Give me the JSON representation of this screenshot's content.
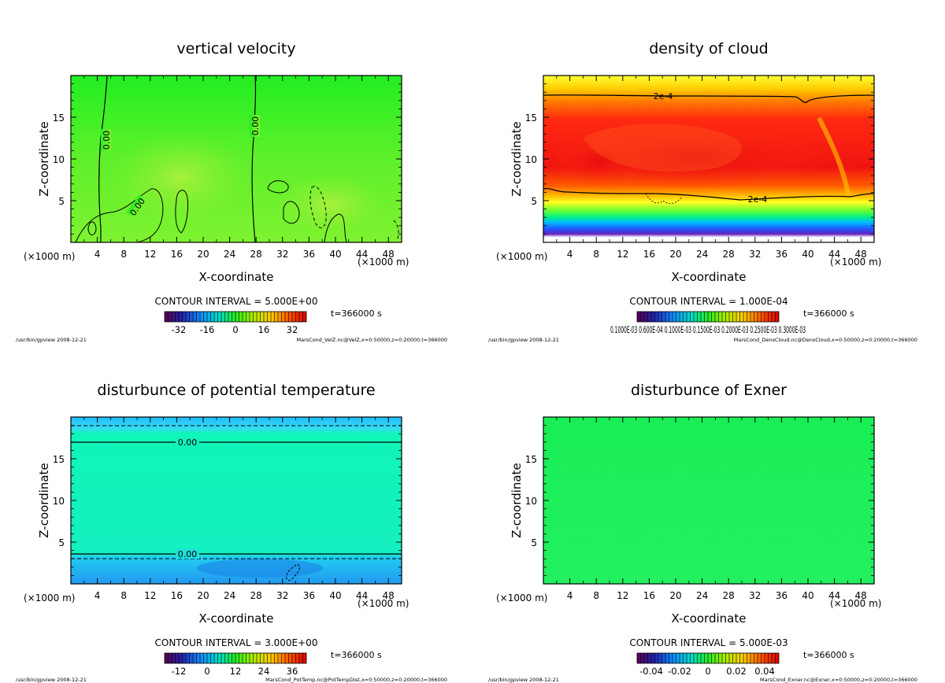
{
  "panels": [
    {
      "title": "vertical velocity",
      "x_label": "X-coordinate",
      "y_label": "Z-coordinate",
      "x_unit": "(×1000 m)",
      "y_unit": "(×1000 m)",
      "x_ticks": [
        "4",
        "8",
        "12",
        "16",
        "20",
        "24",
        "28",
        "32",
        "36",
        "40",
        "44",
        "48"
      ],
      "y_ticks": [
        "5",
        "10",
        "15"
      ],
      "contour_interval": "CONTOUR INTERVAL = 5.000E+00",
      "time": "t=366000 s",
      "colorbar_ticks": [
        "-32",
        "-16",
        "0",
        "16",
        "32"
      ],
      "footer_left": "/usr/bin/gpview  2008-12-21",
      "footer_right": "MarsCond_VelZ.nc@VelZ,x=0:50000,z=0:20000,t=366000",
      "contour_labels": [
        "0.00",
        "0.00",
        "0.00"
      ]
    },
    {
      "title": "density of cloud",
      "x_label": "X-coordinate",
      "y_label": "Z-coordinate",
      "x_unit": "(×1000 m)",
      "y_unit": "(×1000 m)",
      "x_ticks": [
        "4",
        "8",
        "12",
        "16",
        "20",
        "24",
        "28",
        "32",
        "36",
        "40",
        "44",
        "48"
      ],
      "y_ticks": [
        "5",
        "10",
        "15"
      ],
      "contour_interval": "CONTOUR INTERVAL = 1.000E-04",
      "time": "t=366000 s",
      "colorbar_ticks": [
        "0.1000E-03 0.600E-04 0.1000E-03 0.1500E-03 0.2000E-03 0.2500E-03 0.3000E-03"
      ],
      "footer_left": "/usr/bin/gpview  2008-12-21",
      "footer_right": "MarsCond_DensCloud.nc@DensCloud,x=0:50000,z=0:20000,t=366000",
      "contour_labels": [
        "2e-4",
        "2e-4"
      ]
    },
    {
      "title": "disturbunce of potential temperature",
      "x_label": "X-coordinate",
      "y_label": "Z-coordinate",
      "x_unit": "(×1000 m)",
      "y_unit": "(×1000 m)",
      "x_ticks": [
        "4",
        "8",
        "12",
        "16",
        "20",
        "24",
        "28",
        "32",
        "36",
        "40",
        "44",
        "48"
      ],
      "y_ticks": [
        "5",
        "10",
        "15"
      ],
      "contour_interval": "CONTOUR INTERVAL = 3.000E+00",
      "time": "t=366000 s",
      "colorbar_ticks": [
        "-12",
        "0",
        "12",
        "24",
        "36"
      ],
      "footer_left": "/usr/bin/gpview  2008-12-21",
      "footer_right": "MarsCond_PotTemp.nc@PotTempDist,x=0:50000,z=0:20000,t=366000",
      "contour_labels": [
        "0.00",
        "0.00"
      ]
    },
    {
      "title": "disturbunce of Exner",
      "x_label": "X-coordinate",
      "y_label": "Z-coordinate",
      "x_unit": "(×1000 m)",
      "y_unit": "(×1000 m)",
      "x_ticks": [
        "4",
        "8",
        "12",
        "16",
        "20",
        "24",
        "28",
        "32",
        "36",
        "40",
        "44",
        "48"
      ],
      "y_ticks": [
        "5",
        "10",
        "15"
      ],
      "contour_interval": "CONTOUR INTERVAL = 5.000E-03",
      "time": "t=366000 s",
      "colorbar_ticks": [
        "-0.04",
        "-0.02",
        "0",
        "0.02",
        "0.04"
      ],
      "footer_left": "/usr/bin/gpview  2008-12-21",
      "footer_right": "MarsCond_Exner.nc@Exner,x=0:50000,z=0:20000,t=366000",
      "contour_labels": []
    }
  ],
  "chart_data": [
    {
      "type": "heatmap",
      "title": "vertical velocity",
      "xlabel": "X-coordinate",
      "ylabel": "Z-coordinate",
      "xlim": [
        0,
        50
      ],
      "ylim": [
        0,
        20
      ],
      "x_ticks": [
        4,
        8,
        12,
        16,
        20,
        24,
        28,
        32,
        36,
        40,
        44,
        48
      ],
      "y_ticks": [
        5,
        10,
        15
      ],
      "colorbar_range": [
        -40,
        40
      ],
      "colorbar_ticks": [
        -32,
        -16,
        0,
        16,
        32
      ],
      "contour_interval": 5.0,
      "field_summary": "mostly near 0 (green), small updraft cells below z=7"
    },
    {
      "type": "heatmap",
      "title": "density of cloud",
      "xlabel": "X-coordinate",
      "ylabel": "Z-coordinate",
      "xlim": [
        0,
        50
      ],
      "ylim": [
        0,
        20
      ],
      "x_ticks": [
        4,
        8,
        12,
        16,
        20,
        24,
        28,
        32,
        36,
        40,
        44,
        48
      ],
      "y_ticks": [
        5,
        10,
        15
      ],
      "contour_interval": 0.0001,
      "contour_levels_labeled": [
        "2e-4",
        "2e-4"
      ],
      "field_summary": "cloud layer between z≈5.5 and z≈17.7, maximum (red) near z≈9-14"
    },
    {
      "type": "heatmap",
      "title": "disturbunce of potential temperature",
      "xlabel": "X-coordinate",
      "ylabel": "Z-coordinate",
      "xlim": [
        0,
        50
      ],
      "ylim": [
        0,
        20
      ],
      "x_ticks": [
        4,
        8,
        12,
        16,
        20,
        24,
        28,
        32,
        36,
        40,
        44,
        48
      ],
      "y_ticks": [
        5,
        10,
        15
      ],
      "colorbar_range": [
        -18,
        42
      ],
      "colorbar_ticks": [
        -12,
        0,
        12,
        24,
        36
      ],
      "contour_interval": 3.0,
      "field_summary": "near-zero interior, zero contours at z≈17 and z≈3.5"
    },
    {
      "type": "heatmap",
      "title": "disturbunce of Exner",
      "xlabel": "X-coordinate",
      "ylabel": "Z-coordinate",
      "xlim": [
        0,
        50
      ],
      "ylim": [
        0,
        20
      ],
      "x_ticks": [
        4,
        8,
        12,
        16,
        20,
        24,
        28,
        32,
        36,
        40,
        44,
        48
      ],
      "y_ticks": [
        5,
        10,
        15
      ],
      "colorbar_range": [
        -0.05,
        0.05
      ],
      "colorbar_ticks": [
        -0.04,
        -0.02,
        0,
        0.02,
        0.04
      ],
      "contour_interval": 0.005,
      "field_summary": "uniform near zero"
    }
  ]
}
